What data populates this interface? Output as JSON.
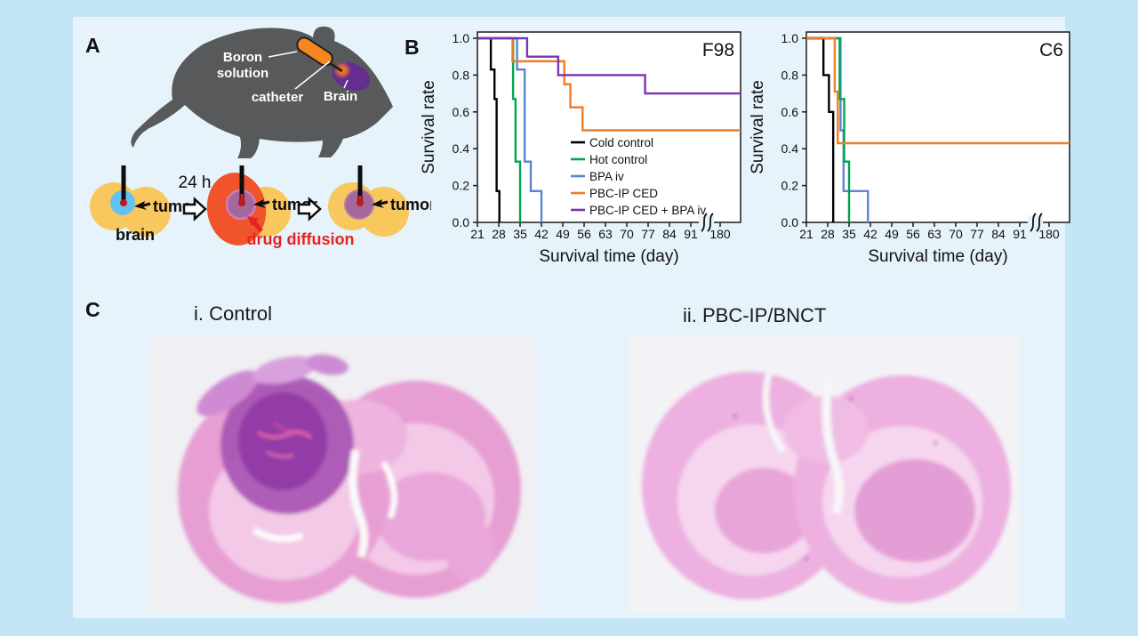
{
  "figure": {
    "panel_a_label": "A",
    "panel_b_label": "B",
    "panel_c_label": "C"
  },
  "panel_a": {
    "rat_labels": {
      "boron_line1": "Boron",
      "boron_line2": "solution",
      "catheter": "catheter",
      "brain": "Brain"
    },
    "schematic": {
      "time_label": "24 h",
      "tumor_label": "tumor",
      "brain_label": "brain",
      "drug_diffusion_label": "drug diffusion"
    },
    "colors": {
      "rat_body": "#58595b",
      "capsule_orange": "#f6871f",
      "brain_purple": "#662d91",
      "schematic_brain_yellow": "#f8c85f",
      "initial_tumor_blue": "#63c3f0",
      "drug_diffusion_orange": "#f0542b",
      "treated_tumor_mauve": "#a2689c",
      "injection_red": "#e8221f"
    }
  },
  "panel_c": {
    "left_caption": "i. Control",
    "right_caption": "ii. PBC-IP/BNCT",
    "histology_colors": {
      "tissue_pink": "#eeb0de",
      "tumor_purple": "#9a44ab",
      "slide_background": "#f1f0f4"
    }
  },
  "chart_data": [
    {
      "type": "line",
      "title": "F98",
      "xlabel": "Survival time (day)",
      "ylabel": "Survival rate",
      "xticks": [
        21,
        28,
        35,
        42,
        49,
        56,
        63,
        70,
        77,
        84,
        91,
        180
      ],
      "axis_break_after": 91,
      "yticks": [
        0.0,
        0.2,
        0.4,
        0.6,
        0.8,
        1.0
      ],
      "ylim": [
        0,
        1
      ],
      "grid": false,
      "legend_position": "center-right-inside",
      "legend": [
        {
          "label": "Cold control",
          "color": "#000000"
        },
        {
          "label": "Hot control",
          "color": "#00a550"
        },
        {
          "label": "BPA iv",
          "color": "#5b84d1"
        },
        {
          "label": "PBC-IP CED",
          "color": "#f07d28"
        },
        {
          "label": "PBC-IP CED + BPA iv",
          "color": "#7a35b0"
        }
      ],
      "series": [
        {
          "name": "Cold control",
          "color": "#000000",
          "steps": [
            [
              21,
              1
            ],
            [
              25.4,
              1
            ],
            [
              25.4,
              0.83
            ],
            [
              26.6,
              0.83
            ],
            [
              26.6,
              0.67
            ],
            [
              27.3,
              0.67
            ],
            [
              27.3,
              0.17
            ],
            [
              28.2,
              0.17
            ],
            [
              28.2,
              0
            ]
          ]
        },
        {
          "name": "Hot control",
          "color": "#00a550",
          "steps": [
            [
              21,
              1
            ],
            [
              32.7,
              1
            ],
            [
              32.7,
              0.67
            ],
            [
              33.5,
              0.67
            ],
            [
              33.5,
              0.33
            ],
            [
              35,
              0.33
            ],
            [
              35,
              0
            ]
          ]
        },
        {
          "name": "BPA iv",
          "color": "#5b84d1",
          "steps": [
            [
              21,
              1
            ],
            [
              34,
              1
            ],
            [
              34,
              0.83
            ],
            [
              36.5,
              0.83
            ],
            [
              36.5,
              0.33
            ],
            [
              38.5,
              0.33
            ],
            [
              38.5,
              0.17
            ],
            [
              42,
              0.17
            ],
            [
              42,
              0
            ]
          ]
        },
        {
          "name": "PBC-IP CED",
          "color": "#f07d28",
          "steps": [
            [
              21,
              1
            ],
            [
              32.5,
              1
            ],
            [
              32.5,
              0.875
            ],
            [
              49.5,
              0.875
            ],
            [
              49.5,
              0.75
            ],
            [
              51.5,
              0.75
            ],
            [
              51.5,
              0.625
            ],
            [
              55.5,
              0.625
            ],
            [
              55.5,
              0.5
            ],
            [
              999,
              0.5
            ]
          ]
        },
        {
          "name": "PBC-IP CED + BPA iv",
          "color": "#7a35b0",
          "steps": [
            [
              21,
              1
            ],
            [
              37.3,
              1
            ],
            [
              37.3,
              0.9
            ],
            [
              47.5,
              0.9
            ],
            [
              47.5,
              0.8
            ],
            [
              76,
              0.8
            ],
            [
              76,
              0.7
            ],
            [
              999,
              0.7
            ]
          ]
        }
      ]
    },
    {
      "type": "line",
      "title": "C6",
      "xlabel": "Survival time (day)",
      "ylabel": "Survival rate",
      "xticks": [
        21,
        28,
        35,
        42,
        49,
        56,
        63,
        70,
        77,
        84,
        91,
        180
      ],
      "axis_break_after": 91,
      "yticks": [
        0.0,
        0.2,
        0.4,
        0.6,
        0.8,
        1.0
      ],
      "ylim": [
        0,
        1
      ],
      "grid": false,
      "legend": null,
      "series": [
        {
          "name": "BPA iv",
          "color": "#5b84d1",
          "steps": [
            [
              21,
              1
            ],
            [
              32.2,
              1
            ],
            [
              32.2,
              0.5
            ],
            [
              33.2,
              0.5
            ],
            [
              33.2,
              0.17
            ],
            [
              41.2,
              0.17
            ],
            [
              41.2,
              0
            ]
          ]
        },
        {
          "name": "Hot control",
          "color": "#00a550",
          "steps": [
            [
              21,
              1
            ],
            [
              31.9,
              1
            ],
            [
              31.9,
              0.67
            ],
            [
              33.4,
              0.67
            ],
            [
              33.4,
              0.33
            ],
            [
              35,
              0.33
            ],
            [
              35,
              0
            ]
          ]
        },
        {
          "name": "Cold control",
          "color": "#000000",
          "steps": [
            [
              21,
              1
            ],
            [
              26.6,
              1
            ],
            [
              26.6,
              0.8
            ],
            [
              28.4,
              0.8
            ],
            [
              28.4,
              0.6
            ],
            [
              29.8,
              0.6
            ],
            [
              29.8,
              0
            ]
          ]
        },
        {
          "name": "PBC-IP CED",
          "color": "#f07d28",
          "steps": [
            [
              21,
              1
            ],
            [
              30.3,
              1
            ],
            [
              30.3,
              0.71
            ],
            [
              31.3,
              0.71
            ],
            [
              31.3,
              0.43
            ],
            [
              999,
              0.43
            ]
          ]
        }
      ]
    }
  ]
}
